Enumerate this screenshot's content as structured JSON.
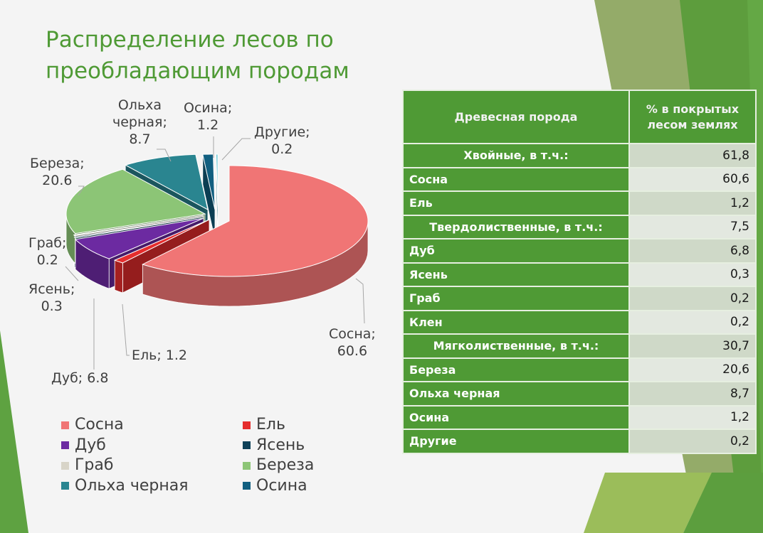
{
  "title": "Распределение лесов по преобладающим породам",
  "colors": {
    "accent": "#4f9a35",
    "text": "#404040"
  },
  "chart_data": {
    "type": "pie",
    "style": "3d-exploded",
    "categories": [
      "Сосна",
      "Ель",
      "Дуб",
      "Ясень",
      "Граб",
      "Береза",
      "Ольха черная",
      "Осина",
      "Другие"
    ],
    "values": [
      60.6,
      1.2,
      6.8,
      0.3,
      0.2,
      20.6,
      8.7,
      1.2,
      0.2
    ],
    "data_labels": [
      "Сосна; 60.6",
      "Ель; 1.2",
      "Дуб; 6.8",
      "Ясень; 0.3",
      "Граб; 0.2",
      "Береза; 20.6",
      "Ольха черная; 8.7",
      "Осина; 1.2",
      "Другие; 0.2"
    ],
    "colors": [
      "#f07575",
      "#e52d2d",
      "#6c2aa1",
      "#0e4158",
      "#d8d4c8",
      "#8cc576",
      "#2a8590",
      "#115f80",
      "#59c2d0"
    ],
    "legend": {
      "position": "bottom",
      "entries": [
        "Сосна",
        "Ель",
        "Дуб",
        "Ясень",
        "Граб",
        "Береза",
        "Ольха черная",
        "Осина"
      ]
    }
  },
  "labels": {
    "sosna": [
      "Сосна;",
      "60.6"
    ],
    "el": "Ель; 1.2",
    "dub": "Дуб; 6.8",
    "yasen": [
      "Ясень;",
      "0.3"
    ],
    "grab": [
      "Граб;",
      "0.2"
    ],
    "bereza": [
      "Береза;",
      "20.6"
    ],
    "olha": [
      "Ольха",
      "черная;",
      "8.7"
    ],
    "osina": [
      "Осина;",
      "1.2"
    ],
    "drugie": [
      "Другие;",
      "0.2"
    ]
  },
  "table": {
    "headers": [
      "Древесная порода",
      "% в покрытых лесом землях"
    ],
    "rows": [
      {
        "name": "Хвойные, в т.ч.:",
        "value": "61,8",
        "group": true
      },
      {
        "name": "Сосна",
        "value": "60,6",
        "group": false
      },
      {
        "name": "Ель",
        "value": "1,2",
        "group": false
      },
      {
        "name": "Твердолиственные, в т.ч.:",
        "value": "7,5",
        "group": true
      },
      {
        "name": "Дуб",
        "value": "6,8",
        "group": false
      },
      {
        "name": "Ясень",
        "value": "0,3",
        "group": false
      },
      {
        "name": "Граб",
        "value": "0,2",
        "group": false
      },
      {
        "name": "Клен",
        "value": "0,2",
        "group": false
      },
      {
        "name": "Мягколиственные, в т.ч.:",
        "value": "30,7",
        "group": true
      },
      {
        "name": "Береза",
        "value": "20,6",
        "group": false
      },
      {
        "name": "Ольха черная",
        "value": "8,7",
        "group": false
      },
      {
        "name": "Осина",
        "value": "1,2",
        "group": false
      },
      {
        "name": "Другие",
        "value": "0,2",
        "group": false
      }
    ]
  }
}
